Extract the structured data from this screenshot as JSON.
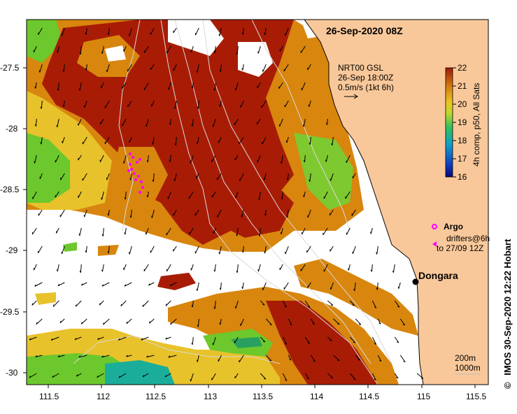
{
  "title": "26-Sep-2020 08Z",
  "current_legend": {
    "line1": "NRT00 GSL",
    "line2": "26-Sep 18:00Z",
    "line3": "0.5m/s (1kt 6h)"
  },
  "colorbar": {
    "ticks": [
      "22",
      "21",
      "20",
      "19",
      "18",
      "17",
      "16"
    ],
    "label": "4h comp, p50, All Sats",
    "min": 16,
    "max": 22
  },
  "argo_legend": {
    "argo_label": "Argo",
    "drifters_line1": "drifters@6h",
    "drifters_line2": "to 27/09 12Z"
  },
  "place_label": "Dongara",
  "depth_legend": {
    "line1": "200m",
    "line2": "1000m"
  },
  "credit": "IMOS 30-Sep-2020 12:22 Hobart",
  "copyright_symbol": "©",
  "x_ticks": [
    "111.5",
    "112",
    "112.5",
    "113",
    "113.5",
    "114",
    "114.5",
    "115",
    "115.5"
  ],
  "y_ticks": [
    "-27.5",
    "-28",
    "-28.5",
    "-29",
    "-29.5",
    "-30"
  ],
  "colors": {
    "land": "#f9c89a",
    "warm": "#a81c06",
    "orange": "#d8860e",
    "yellow": "#e8c22a",
    "green": "#6cc82c",
    "teal": "#1aae9a",
    "argo": "#ff00ff"
  }
}
